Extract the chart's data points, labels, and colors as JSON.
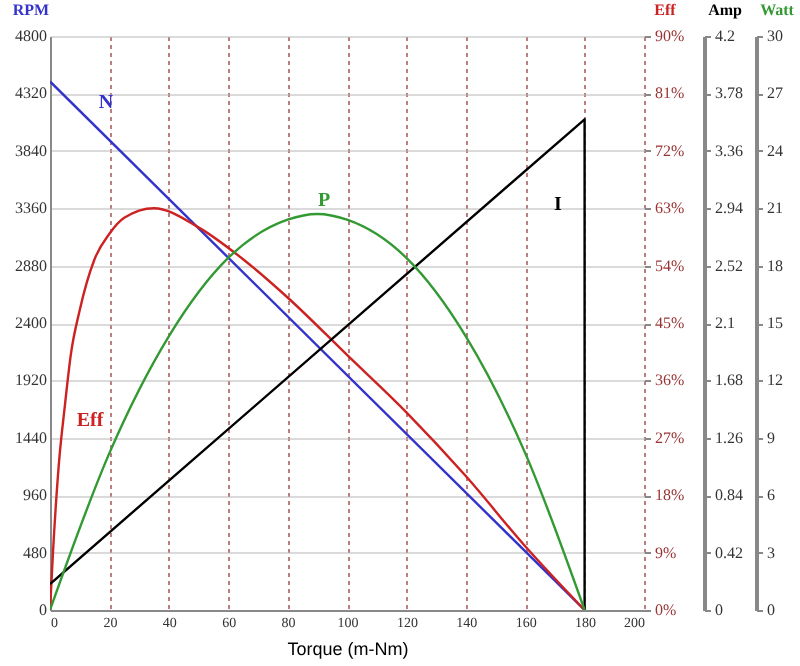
{
  "chart_data": [
    {
      "type": "line",
      "xlabel": "Torque (m-Nm)",
      "ylabel": "RPM",
      "y2label": "Eff",
      "y3label": "Amp",
      "xlim": [
        0,
        200
      ],
      "xticks": [
        0,
        20,
        40,
        60,
        80,
        100,
        120,
        140,
        160,
        180,
        200
      ],
      "ylim": [
        0,
        4800
      ],
      "yticks": [
        0,
        480,
        960,
        1440,
        1920,
        2400,
        2880,
        3360,
        3840,
        4320,
        4800
      ],
      "y2lim": [
        0,
        90
      ],
      "y2ticks": [
        {
          "value": 0,
          "label": "0%"
        },
        {
          "value": 9,
          "label": "9%"
        },
        {
          "value": 18,
          "label": "18%"
        },
        {
          "value": 27,
          "label": "27%"
        },
        {
          "value": 36,
          "label": "36%"
        },
        {
          "value": 45,
          "label": "45%"
        },
        {
          "value": 54,
          "label": "54%"
        },
        {
          "value": 63,
          "label": "63%"
        },
        {
          "value": 72,
          "label": "72%"
        },
        {
          "value": 81,
          "label": "81%"
        },
        {
          "value": 90,
          "label": "90%"
        }
      ],
      "y3lim": [
        0,
        4.2
      ],
      "y3ticks": [
        0,
        0.42,
        0.84,
        1.26,
        1.68,
        2.1,
        2.52,
        2.94,
        3.36,
        3.78,
        4.2
      ],
      "grid": true,
      "series": [
        {
          "name": "N",
          "color": "#3333cc",
          "x": [
            0,
            180
          ],
          "values": [
            4420,
            0
          ]
        },
        {
          "name": "Eff",
          "color": "#cc2222",
          "axis": "y2",
          "x": [
            0,
            1,
            3,
            5,
            7,
            10,
            15,
            20,
            25,
            35,
            50,
            65,
            80,
            100,
            120,
            140,
            160,
            180
          ],
          "values": [
            0,
            9,
            23,
            32,
            40,
            47,
            55,
            59,
            61.5,
            63,
            60,
            55,
            49,
            40,
            31,
            21,
            10,
            0
          ]
        },
        {
          "name": "I",
          "color": "#000000",
          "axis": "y3",
          "x": [
            0,
            180,
            180
          ],
          "values": [
            0.19,
            3.59,
            0
          ]
        }
      ]
    },
    {
      "type": "line",
      "ylabel": "Watt",
      "xlim": [
        0,
        200
      ],
      "ylim": [
        0,
        30
      ],
      "yticks": [
        0,
        3,
        6,
        9,
        12,
        15,
        18,
        21,
        24,
        27,
        30
      ],
      "tick_labels": "y",
      "series": [
        {
          "name": "P",
          "color": "#339933",
          "x": [
            0,
            20,
            40,
            60,
            80,
            90,
            100,
            120,
            140,
            160,
            180
          ],
          "values": [
            0,
            8.2,
            14.3,
            18.4,
            20.4,
            20.7,
            20.4,
            18.4,
            14.3,
            8.2,
            0
          ]
        }
      ]
    }
  ]
}
